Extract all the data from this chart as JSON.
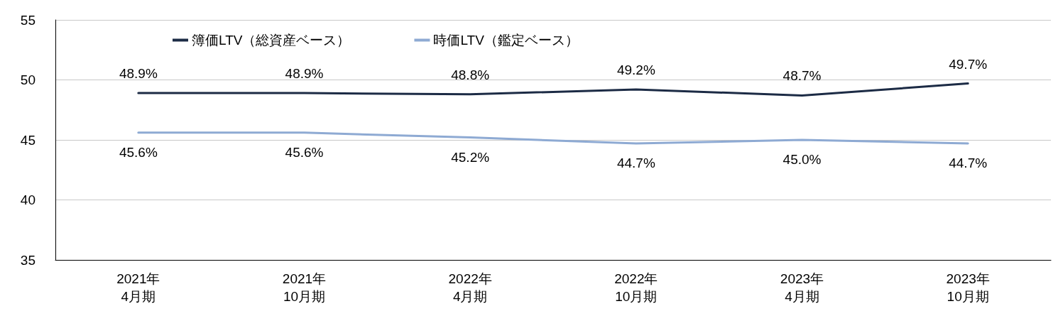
{
  "chart_data": {
    "type": "line",
    "categories": [
      "2021年\n4月期",
      "2021年\n10月期",
      "2022年\n4月期",
      "2022年\n10月期",
      "2023年\n4月期",
      "2023年\n10月期"
    ],
    "series": [
      {
        "name": "簿価LTV（総資産ベース）",
        "color": "#1c2b45",
        "values": [
          48.9,
          48.9,
          48.8,
          49.2,
          48.7,
          49.7
        ],
        "value_labels": [
          "48.9%",
          "48.9%",
          "48.8%",
          "49.2%",
          "48.7%",
          "49.7%"
        ]
      },
      {
        "name": "時価LTV（鑑定ベース）",
        "color": "#8eaad3",
        "values": [
          45.6,
          45.6,
          45.2,
          44.7,
          45.0,
          44.7
        ],
        "value_labels": [
          "45.6%",
          "45.6%",
          "45.2%",
          "44.7%",
          "45.0%",
          "44.7%"
        ]
      }
    ],
    "ylim": [
      35,
      55
    ],
    "yticks": [
      35,
      40,
      45,
      50,
      55
    ],
    "grid": "y",
    "legend": "top left",
    "marker": "none",
    "line_style": "solid"
  }
}
